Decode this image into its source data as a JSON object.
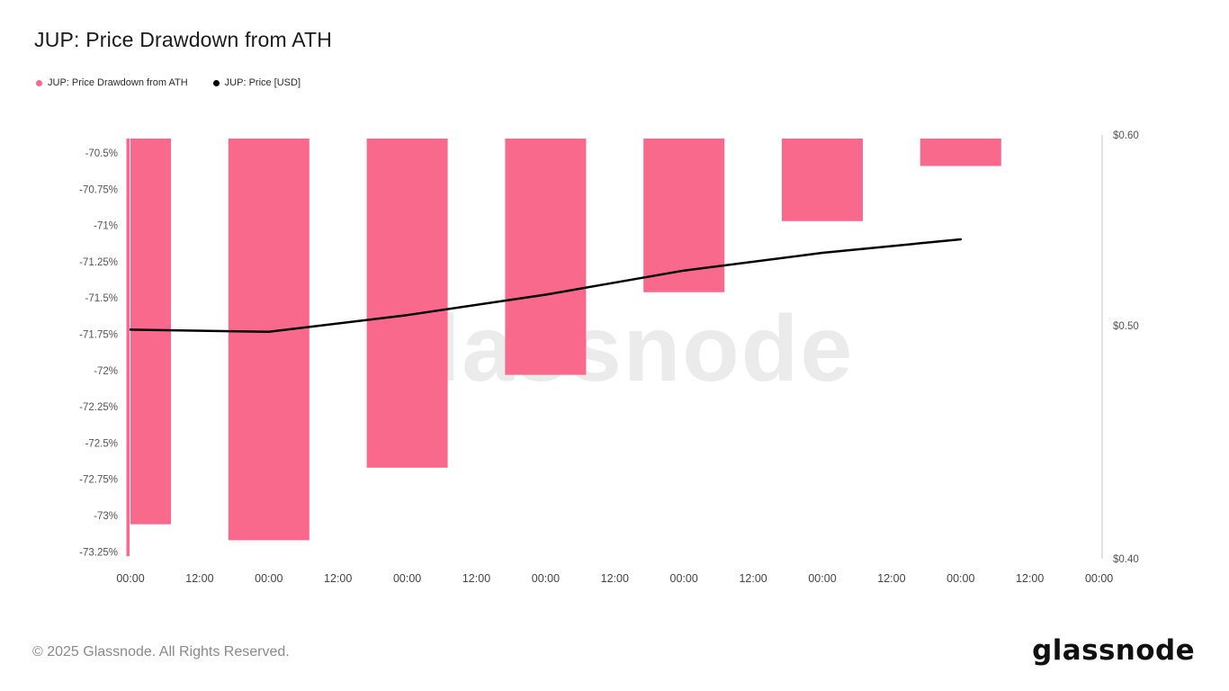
{
  "title": "JUP: Price Drawdown from ATH",
  "legend": [
    {
      "label": "JUP: Price Drawdown from ATH",
      "color": "#f9698c"
    },
    {
      "label": "JUP: Price [USD]",
      "color": "#000000"
    }
  ],
  "watermark": "glassnode",
  "footer": {
    "copyright": "© 2025 Glassnode. All Rights Reserved.",
    "logo": "glassnode"
  },
  "colors": {
    "bar": "#f9698c",
    "line": "#000000",
    "axis_line": "#cfcfcf",
    "tick_text": "#555555",
    "x_tick_text": "#444444",
    "watermark": "#ebebeb"
  },
  "chart_data": {
    "type": "bar",
    "title": "JUP: Price Drawdown from ATH",
    "legend_position": "top-left",
    "grid": false,
    "x_tick_labels": [
      "00:00",
      "12:00",
      "00:00",
      "12:00",
      "00:00",
      "12:00",
      "00:00",
      "12:00",
      "00:00",
      "12:00",
      "00:00",
      "12:00",
      "00:00",
      "12:00",
      "00:00"
    ],
    "series": [
      {
        "name": "JUP: Price Drawdown from ATH",
        "type": "bar",
        "axis": "left",
        "unit": "%",
        "values": [
          -73.06,
          -73.17,
          -72.67,
          -72.03,
          -71.46,
          -70.97,
          -70.59
        ]
      },
      {
        "name": "JUP: Price [USD]",
        "type": "line",
        "axis": "right",
        "unit": "USD",
        "values": [
          0.498,
          0.497,
          0.505,
          0.515,
          0.527,
          0.536,
          0.543
        ]
      }
    ],
    "partial_edge_bar_value": -73.28,
    "left_axis": {
      "unit": "%",
      "ticks": [
        {
          "label": "-70.5%",
          "value": -70.5
        },
        {
          "label": "-70.75%",
          "value": -70.75
        },
        {
          "label": "-71%",
          "value": -71
        },
        {
          "label": "-71.25%",
          "value": -71.25
        },
        {
          "label": "-71.5%",
          "value": -71.5
        },
        {
          "label": "-71.75%",
          "value": -71.75
        },
        {
          "label": "-72%",
          "value": -72
        },
        {
          "label": "-72.25%",
          "value": -72.25
        },
        {
          "label": "-72.5%",
          "value": -72.5
        },
        {
          "label": "-72.75%",
          "value": -72.75
        },
        {
          "label": "-73%",
          "value": -73
        },
        {
          "label": "-73.25%",
          "value": -73.25
        }
      ]
    },
    "right_axis": {
      "unit": "USD",
      "scale": "log",
      "min": 0.4,
      "max": 0.6,
      "ticks": [
        {
          "label": "$0.60",
          "value": 0.6
        },
        {
          "label": "$0.50",
          "value": 0.5
        },
        {
          "label": "$0.40",
          "value": 0.4
        }
      ]
    }
  }
}
